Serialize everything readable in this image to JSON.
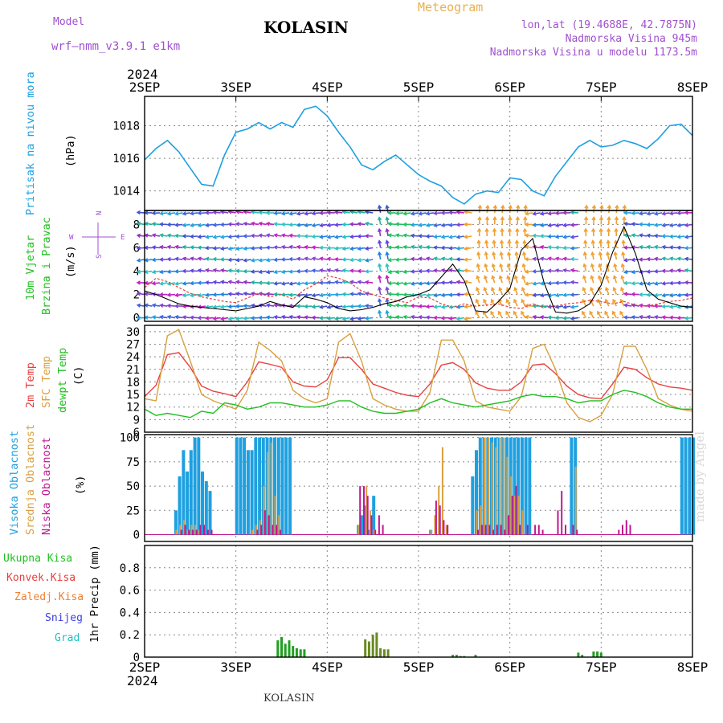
{
  "header": {
    "title": "KOLASIN",
    "model_label": "Model",
    "model_name": "wrf–nmm_v3.9.1 e1km",
    "meteogram_label": "Meteogram",
    "lonlat": "lon,lat (19.4688E, 42.7875N)",
    "altitude": "Nadmorska Visina 945m",
    "altitude_model": "Nadmorska Visina u modelu 1173.5m"
  },
  "footer": {
    "station": "KOLASIN",
    "made_by": "made by Angel"
  },
  "colors": {
    "pressure": "#1ea0e0",
    "t2m": "#e84040",
    "sfc": "#d8a040",
    "dew": "#20c020",
    "cloud_high": "#1ea0e0",
    "cloud_mid": "#d8a040",
    "cloud_low": "#c01890",
    "precip_total": "#20a020",
    "precip_conv": "#e84040",
    "precip_frozen": "#f08030",
    "precip_snow": "#4040e0",
    "precip_graupel": "#20c0c0",
    "wind_speed": "#000000",
    "gust": "#e84040"
  },
  "x_axis": {
    "year": "2024",
    "days": [
      "2SEP",
      "3SEP",
      "4SEP",
      "5SEP",
      "6SEP",
      "7SEP",
      "8SEP"
    ]
  },
  "chart_data": [
    {
      "type": "line",
      "panel": "pressure",
      "ylabel_left": "Pritisak na nivou mora",
      "ylabel_right": "(hPa)",
      "ylim": [
        1012.8,
        1019.8
      ],
      "yticks": [
        "1014",
        "1016",
        "1018"
      ],
      "x": [
        0,
        3,
        6,
        9,
        12,
        15,
        18,
        21,
        24,
        27,
        30,
        33,
        36,
        39,
        42,
        45,
        48,
        51,
        54,
        57,
        60,
        63,
        66,
        69,
        72,
        75,
        78,
        81,
        84,
        87,
        90,
        93,
        96,
        99,
        102,
        105,
        108,
        111,
        114,
        117,
        120,
        123,
        126,
        129,
        132,
        135,
        138,
        141,
        144
      ],
      "series": [
        {
          "values": [
            1015.9,
            1016.6,
            1017.1,
            1016.4,
            1015.4,
            1014.4,
            1014.3,
            1016.2,
            1017.6,
            1017.8,
            1018.2,
            1017.8,
            1018.2,
            1017.9,
            1019.0,
            1019.2,
            1018.6,
            1017.6,
            1016.7,
            1015.6,
            1015.3,
            1015.8,
            1016.2,
            1015.6,
            1015.0,
            1014.6,
            1014.3,
            1013.6,
            1013.2,
            1013.8,
            1014.0,
            1013.9,
            1014.8,
            1014.7,
            1014.0,
            1013.7,
            1014.9,
            1015.8,
            1016.7,
            1017.1,
            1016.7,
            1016.8,
            1017.1,
            1016.9,
            1016.6,
            1017.2,
            1018.0,
            1018.1,
            1017.4
          ]
        }
      ]
    },
    {
      "type": "line",
      "panel": "wind",
      "ylabel_left": "10m Vjetar",
      "ylabel_left2": "Brzina i Pravac",
      "ylabel_right": "(m/s)",
      "compass": [
        "N",
        "W",
        "E",
        "S"
      ],
      "ylim": [
        -0.3,
        9.2
      ],
      "yticks": [
        "0",
        "2",
        "4",
        "6",
        "8"
      ],
      "x": [
        0,
        3,
        6,
        9,
        12,
        15,
        18,
        21,
        24,
        27,
        30,
        33,
        36,
        39,
        42,
        45,
        48,
        51,
        54,
        57,
        60,
        63,
        66,
        69,
        72,
        75,
        78,
        81,
        84,
        87,
        90,
        93,
        96,
        99,
        102,
        105,
        108,
        111,
        114,
        117,
        120,
        123,
        126,
        129,
        132,
        135,
        138,
        141,
        144
      ],
      "series": [
        {
          "name": "speed",
          "values": [
            2.3,
            2.0,
            1.6,
            1.2,
            1.0,
            0.9,
            0.8,
            0.7,
            0.6,
            0.8,
            1.0,
            1.4,
            1.1,
            0.9,
            1.8,
            1.6,
            1.3,
            0.8,
            0.6,
            0.7,
            0.9,
            1.2,
            1.4,
            1.8,
            2.0,
            2.4,
            3.5,
            4.6,
            3.2,
            0.6,
            0.5,
            1.4,
            2.5,
            5.8,
            6.8,
            3.0,
            0.5,
            0.4,
            0.6,
            1.2,
            2.8,
            5.6,
            7.8,
            5.5,
            2.4,
            1.6,
            1.3,
            1.0,
            0.9
          ]
        },
        {
          "name": "gust",
          "values": [
            2.6,
            3.4,
            3.1,
            2.6,
            2.1,
            1.8,
            1.6,
            1.4,
            1.3,
            1.7,
            2.1,
            1.8,
            2.0,
            1.6,
            2.4,
            2.9,
            3.6,
            3.4,
            3.0,
            2.3,
            2.0,
            1.7,
            1.5,
            1.3,
            1.8,
            1.7,
            1.2,
            0.9,
            1.2,
            1.0,
            1.1,
            1.2,
            0.9,
            0.8,
            1.2,
            0.9,
            1.0,
            1.2,
            1.3,
            1.5,
            1.4,
            1.2,
            1.4,
            1.1,
            1.0,
            1.2,
            1.4,
            1.5,
            1.7
          ]
        }
      ]
    },
    {
      "type": "line",
      "panel": "temperature",
      "ylabel_left": "2m Temp",
      "ylabel_left2": "SFC Temp",
      "ylabel_left3": "dewpt Temp",
      "ylabel_right": "(C)",
      "ylim": [
        6,
        31.5
      ],
      "yticks": [
        "6",
        "9",
        "12",
        "15",
        "18",
        "21",
        "24",
        "27",
        "30"
      ],
      "x": [
        0,
        3,
        6,
        9,
        12,
        15,
        18,
        21,
        24,
        27,
        30,
        33,
        36,
        39,
        42,
        45,
        48,
        51,
        54,
        57,
        60,
        63,
        66,
        69,
        72,
        75,
        78,
        81,
        84,
        87,
        90,
        93,
        96,
        99,
        102,
        105,
        108,
        111,
        114,
        117,
        120,
        123,
        126,
        129,
        132,
        135,
        138,
        141,
        144
      ],
      "series": [
        {
          "name": "2m",
          "values": [
            14.5,
            17.2,
            24.5,
            25.0,
            21.5,
            17.0,
            15.8,
            15.2,
            14.5,
            18.0,
            22.8,
            22.2,
            21.5,
            18.0,
            17.0,
            16.8,
            18.5,
            23.8,
            23.8,
            21.0,
            17.5,
            16.5,
            15.5,
            14.8,
            14.5,
            17.5,
            22.0,
            22.6,
            21.0,
            17.8,
            16.5,
            16.0,
            16.0,
            18.0,
            22.0,
            22.3,
            20.0,
            17.0,
            15.0,
            14.2,
            14.0,
            17.5,
            21.5,
            21.0,
            19.0,
            17.5,
            16.8,
            16.5,
            16.0
          ]
        },
        {
          "name": "sfc",
          "values": [
            14.0,
            13.5,
            29.0,
            30.5,
            23.0,
            15.0,
            13.5,
            12.5,
            11.5,
            16.0,
            27.5,
            25.5,
            23.0,
            16.0,
            14.0,
            13.0,
            14.0,
            27.5,
            29.5,
            23.0,
            14.0,
            12.5,
            11.5,
            11.0,
            11.0,
            15.5,
            28.0,
            28.0,
            23.0,
            13.5,
            12.0,
            11.5,
            11.0,
            14.5,
            26.0,
            27.0,
            21.0,
            13.0,
            9.5,
            8.5,
            10.0,
            15.0,
            26.5,
            26.5,
            21.0,
            14.0,
            12.5,
            11.5,
            11.0
          ]
        },
        {
          "name": "dew",
          "values": [
            11.5,
            10.0,
            10.5,
            10.0,
            9.5,
            11.0,
            10.5,
            13.0,
            12.5,
            11.5,
            12.0,
            13.0,
            13.0,
            12.5,
            12.0,
            12.0,
            12.5,
            13.5,
            13.5,
            12.0,
            11.0,
            10.5,
            10.5,
            11.0,
            11.5,
            13.0,
            14.0,
            13.0,
            12.5,
            12.0,
            12.5,
            13.0,
            13.5,
            14.5,
            15.0,
            14.5,
            14.5,
            14.0,
            13.0,
            13.5,
            13.5,
            15.0,
            16.0,
            15.5,
            14.5,
            13.0,
            12.0,
            11.5,
            11.5
          ]
        }
      ]
    },
    {
      "type": "bar",
      "panel": "cloud",
      "ylabel_left": "Visoka Oblacnost",
      "ylabel_left2": "Srednja Oblacnost",
      "ylabel_left3": "Niska Oblacnost",
      "ylabel_right": "(%)",
      "ylim": [
        -7,
        103
      ],
      "yticks": [
        "0",
        "25",
        "50",
        "75",
        "100"
      ],
      "x": [
        8,
        9,
        10,
        11,
        12,
        13,
        14,
        15,
        16,
        17,
        24,
        25,
        26,
        27,
        28,
        29,
        30,
        31,
        32,
        33,
        34,
        35,
        36,
        37,
        38,
        56,
        57,
        58,
        59,
        60,
        61,
        62,
        67,
        75,
        76,
        77,
        78,
        79,
        80,
        81,
        86,
        87,
        88,
        89,
        90,
        91,
        92,
        93,
        94,
        95,
        96,
        97,
        98,
        99,
        100,
        101,
        102,
        103,
        104,
        108,
        109,
        110,
        111,
        112,
        113,
        114,
        115,
        116,
        124,
        125,
        126,
        127,
        128,
        141,
        142,
        143,
        144
      ],
      "series": [
        {
          "name": "high",
          "values": [
            25,
            60,
            87,
            65,
            87,
            100,
            100,
            65,
            55,
            45,
            100,
            100,
            100,
            87,
            87,
            100,
            100,
            100,
            100,
            100,
            100,
            100,
            100,
            100,
            100,
            10,
            20,
            30,
            5,
            40,
            0,
            0,
            0,
            5,
            0,
            0,
            0,
            0,
            0,
            0,
            60,
            87,
            100,
            100,
            100,
            100,
            100,
            100,
            100,
            100,
            100,
            100,
            100,
            100,
            100,
            100,
            0,
            0,
            0,
            0,
            0,
            0,
            0,
            100,
            100,
            0,
            0,
            0,
            0,
            0,
            0,
            0,
            0,
            100,
            100,
            100,
            100
          ]
        },
        {
          "name": "mid",
          "values": [
            5,
            10,
            15,
            5,
            10,
            10,
            5,
            0,
            0,
            0,
            0,
            0,
            0,
            0,
            5,
            10,
            15,
            50,
            85,
            95,
            40,
            20,
            0,
            0,
            0,
            10,
            0,
            50,
            25,
            5,
            0,
            0,
            0,
            5,
            20,
            50,
            90,
            10,
            0,
            0,
            0,
            25,
            30,
            100,
            100,
            95,
            90,
            100,
            100,
            80,
            60,
            40,
            40,
            25,
            0,
            0,
            0,
            0,
            0,
            0,
            0,
            0,
            0,
            0,
            70,
            0,
            0,
            0,
            0,
            0,
            0,
            0,
            0,
            0,
            0,
            0,
            0
          ]
        },
        {
          "name": "low",
          "values": [
            0,
            5,
            10,
            5,
            5,
            5,
            10,
            10,
            5,
            5,
            0,
            0,
            0,
            0,
            0,
            5,
            10,
            25,
            20,
            10,
            10,
            5,
            0,
            0,
            0,
            50,
            50,
            40,
            20,
            5,
            20,
            10,
            0,
            0,
            35,
            30,
            15,
            10,
            0,
            0,
            0,
            5,
            10,
            10,
            10,
            5,
            10,
            10,
            5,
            20,
            40,
            50,
            10,
            0,
            10,
            0,
            10,
            10,
            5,
            25,
            45,
            10,
            0,
            10,
            5,
            0,
            0,
            0,
            5,
            10,
            15,
            10,
            0,
            0,
            0,
            0,
            0
          ]
        }
      ]
    },
    {
      "type": "bar",
      "panel": "precip",
      "legend": [
        "Ukupna Kisa",
        "Konvek.Kisa",
        "Zaledj.Kisa",
        "Snijeg",
        "Grad"
      ],
      "ylabel_right": "1hr Precip (mm)",
      "ylim": [
        0,
        1.0
      ],
      "yticks": [
        "0",
        "0.2",
        "0.4",
        "0.6",
        "0.8"
      ],
      "x": [
        35,
        36,
        37,
        38,
        39,
        40,
        41,
        42,
        58,
        59,
        60,
        61,
        62,
        63,
        64,
        81,
        82,
        83,
        84,
        87,
        114,
        115,
        118,
        119,
        120
      ],
      "series": [
        {
          "name": "total",
          "values": [
            0.15,
            0.18,
            0.12,
            0.15,
            0.1,
            0.08,
            0.07,
            0.07,
            0.16,
            0.14,
            0.2,
            0.22,
            0.08,
            0.07,
            0.07,
            0.02,
            0.02,
            0.01,
            0.01,
            0.02,
            0.04,
            0.02,
            0.05,
            0.05,
            0.04
          ]
        }
      ]
    }
  ]
}
